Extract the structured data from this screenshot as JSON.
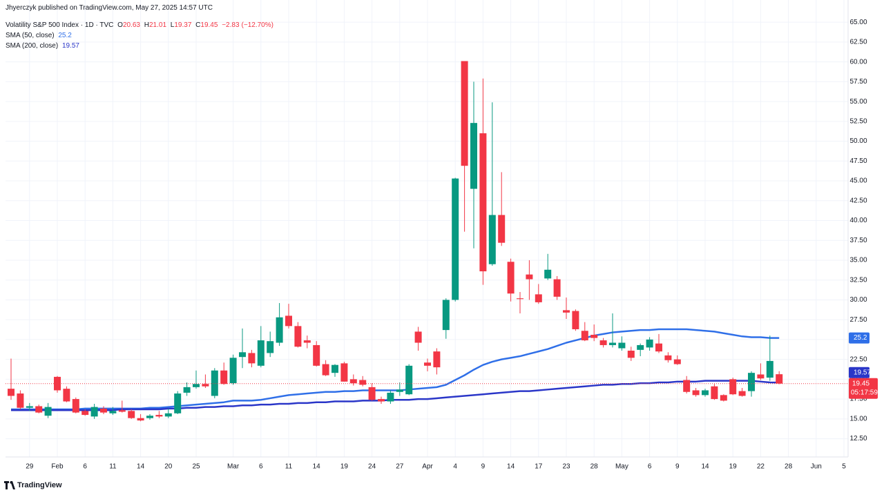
{
  "chart_data": {
    "type": "candlestick",
    "publisher_line": "Jhyerczyk published on TradingView.com, May 27, 2025 14:57 UTC",
    "symbol": "Volatility S&P 500 Index · 1D · TVC",
    "ohlc_labels": [
      "O",
      "H",
      "L",
      "C"
    ],
    "change": {
      "value": -2.83,
      "label": "−2.83"
    },
    "change_percent": {
      "value": -12.7,
      "label": "(−12.70%)"
    },
    "countdown": "05:17:59",
    "branding": "TradingView",
    "up_color": "#089981",
    "down_color": "#f23645",
    "grid": true,
    "categories": [
      null,
      null,
      "29",
      null,
      null,
      "Feb",
      null,
      null,
      "6",
      null,
      null,
      "11",
      null,
      null,
      "14",
      null,
      null,
      "20",
      null,
      null,
      "25",
      null,
      null,
      null,
      "Mar",
      null,
      null,
      "6",
      null,
      null,
      "11",
      null,
      null,
      "14",
      null,
      null,
      "19",
      null,
      null,
      "24",
      null,
      null,
      "27",
      null,
      null,
      "Apr",
      null,
      null,
      "4",
      null,
      null,
      "9",
      null,
      null,
      "14",
      null,
      null,
      "17",
      null,
      null,
      "23",
      null,
      null,
      "28",
      null,
      null,
      "May",
      null,
      null,
      "6",
      null,
      null,
      "9",
      null,
      null,
      "14",
      null,
      null,
      "19",
      null,
      null,
      "22",
      null,
      null,
      "28",
      null,
      null,
      "Jun",
      null,
      null,
      "5"
    ],
    "open": [
      18.8,
      18.2,
      16.4,
      16.6,
      15.4,
      20.3,
      18.8,
      17.5,
      16.0,
      15.3,
      16.3,
      15.7,
      16.1,
      16.0,
      15.1,
      15.1,
      15.5,
      15.3,
      15.7,
      18.3,
      19.0,
      19.4,
      17.9,
      21.1,
      19.5,
      22.8,
      23.3,
      21.7,
      23.3,
      24.6,
      28.0,
      26.7,
      24.9,
      24.3,
      21.9,
      20.8,
      22.0,
      20.0,
      19.9,
      19.0,
      17.5,
      17.2,
      18.4,
      18.1,
      26.0,
      22.1,
      23.5,
      26.2,
      30.0,
      60.1,
      44.0,
      51.0,
      34.5,
      40.7,
      34.8,
      30.2,
      33.2,
      30.7,
      32.7,
      32.6,
      28.7,
      28.6,
      26.1,
      25.6,
      24.9,
      24.3,
      23.9,
      23.6,
      23.7,
      24.0,
      24.5,
      23.0,
      22.5,
      19.9,
      18.6,
      18.0,
      19.1,
      18.0,
      20.0,
      18.5,
      18.5,
      20.6,
      20.2,
      20.63,
      null,
      null,
      null,
      null,
      null,
      null,
      null
    ],
    "high": [
      22.6,
      18.6,
      17.0,
      16.8,
      17.0,
      20.4,
      19.1,
      17.7,
      16.2,
      16.9,
      16.6,
      16.5,
      17.3,
      16.2,
      15.6,
      15.6,
      16.0,
      16.3,
      18.5,
      19.6,
      21.1,
      20.6,
      21.4,
      22.1,
      23.1,
      26.4,
      23.7,
      26.7,
      26.0,
      29.6,
      29.5,
      27.2,
      25.5,
      24.8,
      22.4,
      21.9,
      22.2,
      20.6,
      20.4,
      19.5,
      17.8,
      18.6,
      19.6,
      21.9,
      26.6,
      22.6,
      23.9,
      30.2,
      45.4,
      60.1,
      57.5,
      57.9,
      54.9,
      46.1,
      35.2,
      31.0,
      35.0,
      32.0,
      35.8,
      33.0,
      30.3,
      28.8,
      27.2,
      26.9,
      25.2,
      28.3,
      25.4,
      24.1,
      24.5,
      25.3,
      25.7,
      23.4,
      23.0,
      20.4,
      18.9,
      18.8,
      19.4,
      18.1,
      20.2,
      18.9,
      21.0,
      22.0,
      25.5,
      21.01,
      null,
      null,
      null,
      null,
      null,
      null,
      null
    ],
    "low": [
      17.4,
      16.2,
      16.0,
      15.7,
      15.1,
      18.3,
      17.1,
      15.7,
      15.4,
      15.0,
      15.6,
      15.5,
      15.8,
      15.0,
      14.7,
      14.9,
      15.1,
      15.1,
      15.6,
      17.9,
      18.8,
      18.9,
      17.6,
      19.3,
      19.3,
      21.4,
      21.5,
      21.5,
      22.8,
      24.2,
      26.4,
      24.0,
      23.9,
      21.6,
      20.4,
      20.3,
      19.7,
      19.2,
      19.1,
      17.3,
      16.9,
      16.9,
      17.9,
      18.0,
      23.6,
      21.0,
      20.6,
      25.1,
      29.8,
      38.6,
      36.5,
      31.9,
      34.3,
      36.8,
      29.8,
      28.3,
      30.0,
      29.5,
      32.5,
      30.0,
      27.6,
      26.1,
      24.8,
      24.8,
      24.0,
      24.0,
      23.6,
      22.3,
      22.9,
      23.6,
      23.3,
      22.1,
      21.8,
      18.2,
      17.8,
      17.8,
      17.4,
      17.2,
      18.0,
      17.8,
      17.8,
      19.9,
      19.8,
      19.37,
      null,
      null,
      null,
      null,
      null,
      null,
      null
    ],
    "close": [
      17.9,
      16.4,
      16.6,
      15.8,
      16.5,
      18.6,
      17.2,
      15.8,
      15.5,
      16.5,
      15.8,
      16.0,
      15.9,
      15.1,
      14.8,
      15.4,
      15.3,
      15.7,
      18.2,
      19.0,
      19.4,
      19.1,
      21.1,
      19.4,
      22.7,
      23.4,
      22.0,
      24.9,
      24.8,
      27.8,
      26.7,
      24.1,
      24.6,
      21.7,
      20.5,
      21.8,
      19.7,
      19.5,
      19.3,
      17.4,
      17.2,
      18.3,
      18.7,
      21.7,
      24.6,
      21.7,
      21.5,
      30.0,
      45.3,
      46.9,
      52.3,
      33.6,
      40.7,
      37.2,
      30.8,
      30.1,
      32.6,
      29.7,
      33.8,
      30.4,
      28.4,
      26.3,
      24.9,
      25.2,
      24.3,
      24.6,
      24.6,
      22.7,
      24.3,
      25.0,
      23.5,
      22.4,
      21.9,
      18.4,
      18.0,
      18.6,
      17.5,
      17.3,
      18.1,
      17.9,
      20.8,
      20.1,
      22.3,
      19.45,
      null,
      null,
      null,
      null,
      null,
      null,
      null
    ],
    "series": [
      {
        "name": "SMA (50, close)",
        "color": "#2f6fe8",
        "values": [
          16.2,
          16.2,
          16.2,
          16.2,
          16.2,
          16.2,
          16.2,
          16.2,
          16.3,
          16.3,
          16.3,
          16.3,
          16.3,
          16.3,
          16.3,
          16.4,
          16.4,
          16.5,
          16.6,
          16.7,
          16.8,
          16.9,
          17.0,
          17.1,
          17.3,
          17.3,
          17.3,
          17.4,
          17.6,
          17.8,
          18.0,
          18.1,
          18.2,
          18.3,
          18.4,
          18.4,
          18.5,
          18.5,
          18.6,
          18.6,
          18.6,
          18.6,
          18.6,
          18.7,
          18.8,
          18.9,
          19.0,
          19.3,
          19.9,
          20.5,
          21.2,
          21.8,
          22.2,
          22.5,
          22.7,
          22.9,
          23.2,
          23.5,
          23.8,
          24.2,
          24.6,
          24.9,
          25.2,
          25.5,
          25.7,
          25.9,
          26.0,
          26.1,
          26.2,
          26.2,
          26.3,
          26.3,
          26.3,
          26.3,
          26.2,
          26.1,
          26.0,
          25.8,
          25.6,
          25.4,
          25.3,
          25.3,
          25.2,
          25.2,
          null,
          null,
          null,
          null,
          null,
          null,
          null
        ]
      },
      {
        "name": "SMA (200, close)",
        "color": "#2a36c8",
        "values": [
          16.1,
          16.1,
          16.1,
          16.1,
          16.1,
          16.1,
          16.1,
          16.1,
          16.1,
          16.1,
          16.1,
          16.1,
          16.2,
          16.2,
          16.2,
          16.2,
          16.2,
          16.3,
          16.3,
          16.4,
          16.4,
          16.5,
          16.5,
          16.6,
          16.6,
          16.7,
          16.7,
          16.8,
          16.8,
          16.9,
          16.9,
          17.0,
          17.0,
          17.1,
          17.1,
          17.2,
          17.2,
          17.2,
          17.3,
          17.3,
          17.3,
          17.4,
          17.4,
          17.4,
          17.5,
          17.5,
          17.6,
          17.7,
          17.8,
          17.9,
          18.0,
          18.1,
          18.2,
          18.3,
          18.4,
          18.5,
          18.5,
          18.6,
          18.7,
          18.8,
          18.9,
          19.0,
          19.1,
          19.2,
          19.3,
          19.3,
          19.4,
          19.4,
          19.5,
          19.5,
          19.6,
          19.6,
          19.7,
          19.7,
          19.7,
          19.8,
          19.8,
          19.8,
          19.8,
          19.8,
          19.8,
          19.7,
          19.6,
          19.57,
          null,
          null,
          null,
          null,
          null,
          null,
          null
        ]
      }
    ],
    "ylim": [
      10.2,
      67.8
    ],
    "yticks": [
      {
        "value": 12.5,
        "label": "12.50"
      },
      {
        "value": 15,
        "label": "15.00"
      },
      {
        "value": 17.5,
        "label": "17.50"
      },
      {
        "value": 20,
        "label": "20.00"
      },
      {
        "value": 22.5,
        "label": "22.50"
      },
      {
        "value": 25,
        "label": "25.00"
      },
      {
        "value": 27.5,
        "label": "27.50"
      },
      {
        "value": 30,
        "label": "30.00"
      },
      {
        "value": 32.5,
        "label": "32.50"
      },
      {
        "value": 35,
        "label": "35.00"
      },
      {
        "value": 37.5,
        "label": "37.50"
      },
      {
        "value": 40,
        "label": "40.00"
      },
      {
        "value": 42.5,
        "label": "42.50"
      },
      {
        "value": 45,
        "label": "45.00"
      },
      {
        "value": 47.5,
        "label": "47.50"
      },
      {
        "value": 50,
        "label": "50.00"
      },
      {
        "value": 52.5,
        "label": "52.50"
      },
      {
        "value": 55,
        "label": "55.00"
      },
      {
        "value": 57.5,
        "label": "57.50"
      },
      {
        "value": 60,
        "label": "60.00"
      },
      {
        "value": 62.5,
        "label": "62.50"
      },
      {
        "value": 65,
        "label": "65.00"
      }
    ]
  }
}
